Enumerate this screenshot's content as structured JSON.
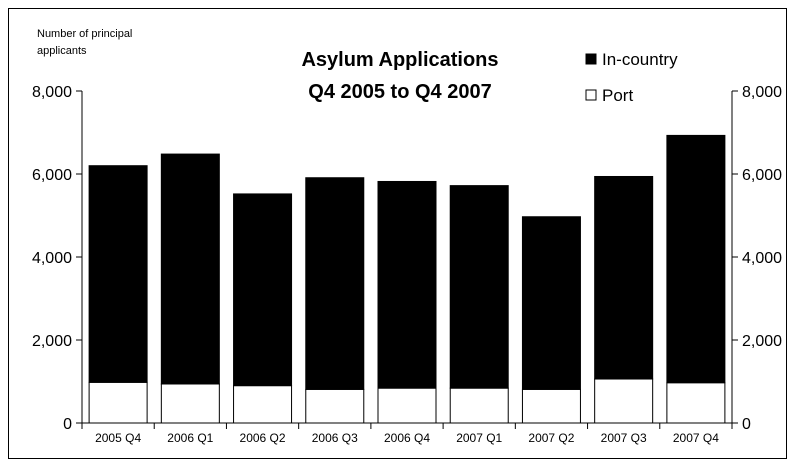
{
  "chart_data": {
    "type": "bar",
    "stacked": true,
    "title": "Asylum Applications",
    "subtitle": "Q4 2005 to Q4 2007",
    "ylabel": "Number of principal applicants",
    "categories": [
      "2005 Q4",
      "2006 Q1",
      "2006 Q2",
      "2006 Q3",
      "2006 Q4",
      "2007 Q1",
      "2007 Q2",
      "2007 Q3",
      "2007 Q4"
    ],
    "series": [
      {
        "name": "Port",
        "color": "#ffffff",
        "values": [
          980,
          940,
          900,
          810,
          840,
          840,
          810,
          1060,
          970
        ]
      },
      {
        "name": "In-country",
        "color": "#000000",
        "values": [
          5220,
          5540,
          4620,
          5100,
          4980,
          4880,
          4160,
          4880,
          5960
        ]
      }
    ],
    "totals": [
      6200,
      6480,
      5520,
      5910,
      5820,
      5720,
      4970,
      5940,
      6930
    ],
    "ylim": [
      0,
      8000
    ],
    "yticks": [
      "0",
      "2,000",
      "4,000",
      "6,000",
      "8,000"
    ],
    "yticks_right": [
      "0",
      "2,000",
      "4,000",
      "6,000",
      "8,000"
    ],
    "grid": false,
    "legend_position": "top-right",
    "legend": [
      "In-country",
      "Port"
    ]
  }
}
